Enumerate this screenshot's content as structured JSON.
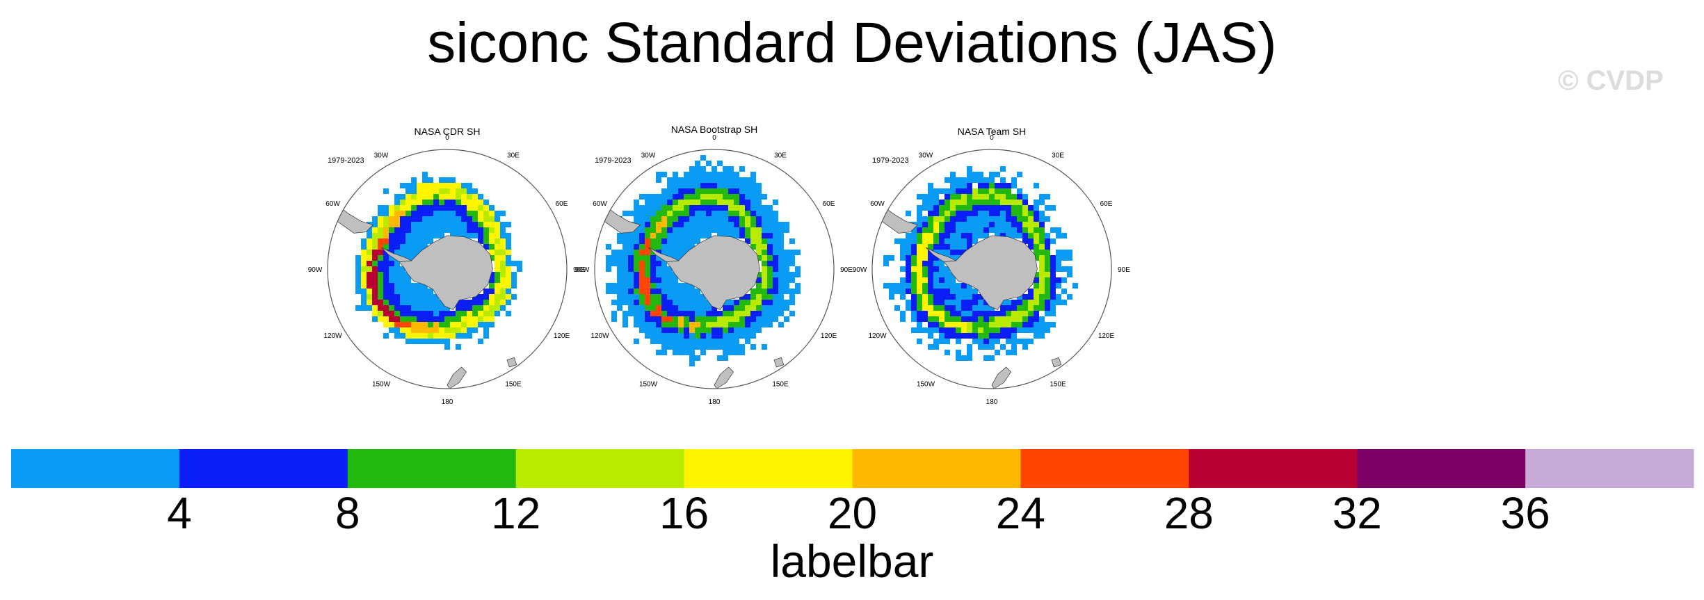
{
  "title": "siconc Standard Deviations (JAS)",
  "watermark": "© CVDP",
  "chart_data": {
    "type": "heatmap",
    "projection": "south-polar-stereographic",
    "panels": [
      {
        "title": "NASA CDR SH",
        "period": "1979-2023",
        "longitude_labels": [
          "0",
          "30E",
          "60E",
          "90E",
          "120E",
          "150E",
          "180",
          "150W",
          "120W",
          "90W",
          "60W",
          "30W"
        ],
        "band_pattern": "narrow-band",
        "max_value_band": "28–32 along 90W–120W"
      },
      {
        "title": "NASA Bootstrap SH",
        "period": "1979-2023",
        "longitude_labels": [
          "0",
          "30E",
          "60E",
          "90E",
          "120E",
          "150E",
          "180",
          "150W",
          "120W",
          "90W",
          "60W",
          "30W"
        ],
        "band_pattern": "wide-low-values",
        "max_value_band": "24–28 along 90W–120W"
      },
      {
        "title": "NASA Team SH",
        "period": "1979-2023",
        "longitude_labels": [
          "0",
          "30E",
          "60E",
          "90E",
          "120E",
          "150E",
          "180",
          "150W",
          "120W",
          "90W",
          "60W",
          "30W"
        ],
        "band_pattern": "broken-band",
        "max_value_band": "16–20"
      }
    ],
    "colorbar": {
      "label": "labelbar",
      "ticks": [
        "4",
        "8",
        "12",
        "16",
        "20",
        "24",
        "28",
        "32",
        "36"
      ],
      "colors": [
        "#0a9bf5",
        "#0a1ef5",
        "#22b80e",
        "#b9eb00",
        "#fff500",
        "#ffb900",
        "#ff4500",
        "#b90032",
        "#7d0064",
        "#c6aad7"
      ]
    },
    "land_color": "#bfbfbf",
    "legend_placement": "bottom"
  }
}
